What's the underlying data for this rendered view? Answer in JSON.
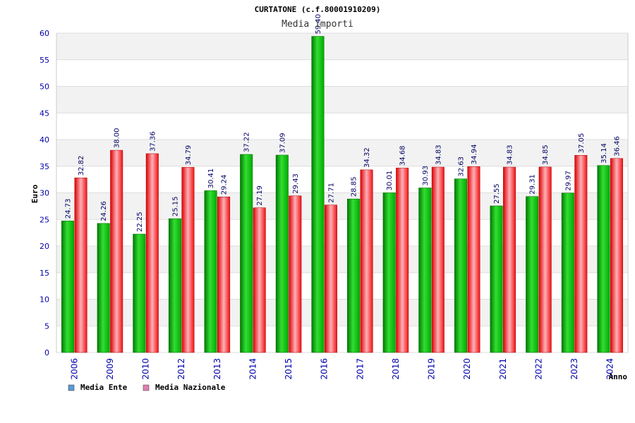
{
  "chart_data": {
    "type": "bar",
    "title": "CURTATONE (c.f.80001910209)",
    "subtitle": "Media importi",
    "xlabel": "Anno",
    "ylabel": "Euro",
    "ylim": [
      0,
      60
    ],
    "yticks": [
      "0",
      "5",
      "10",
      "15",
      "20",
      "25",
      "30",
      "35",
      "40",
      "45",
      "50",
      "55",
      "60"
    ],
    "grid": true,
    "legend_position": "bottom-left",
    "categories": [
      "2006",
      "2009",
      "2010",
      "2012",
      "2013",
      "2014",
      "2015",
      "2016",
      "2017",
      "2018",
      "2019",
      "2020",
      "2021",
      "2022",
      "2023",
      "2024"
    ],
    "series": [
      {
        "name": "Media Ente",
        "color": "#00aa00",
        "legend_color": "#5b9bd5",
        "values": [
          24.73,
          24.26,
          22.25,
          25.15,
          30.41,
          37.22,
          37.09,
          59.4,
          28.85,
          30.01,
          30.93,
          32.63,
          27.55,
          29.31,
          29.97,
          35.14
        ],
        "labels": [
          "24.73",
          "24.26",
          "22.25",
          "25.15",
          "30.41",
          "37.22",
          "37.09",
          "59.40",
          "28.85",
          "30.01",
          "30.93",
          "32.63",
          "27.55",
          "29.31",
          "29.97",
          "35.14"
        ]
      },
      {
        "name": "Media Nazionale",
        "color": "#ee2222",
        "legend_color": "#e07fb0",
        "values": [
          32.82,
          38.0,
          37.36,
          34.79,
          29.24,
          27.19,
          29.43,
          27.71,
          34.32,
          34.68,
          34.83,
          34.94,
          34.83,
          34.85,
          37.05,
          36.46
        ],
        "labels": [
          "32.82",
          "38.00",
          "37.36",
          "34.79",
          "29.24",
          "27.19",
          "29.43",
          "27.71",
          "34.32",
          "34.68",
          "34.83",
          "34.94",
          "34.83",
          "34.85",
          "37.05",
          "36.46"
        ]
      }
    ]
  }
}
